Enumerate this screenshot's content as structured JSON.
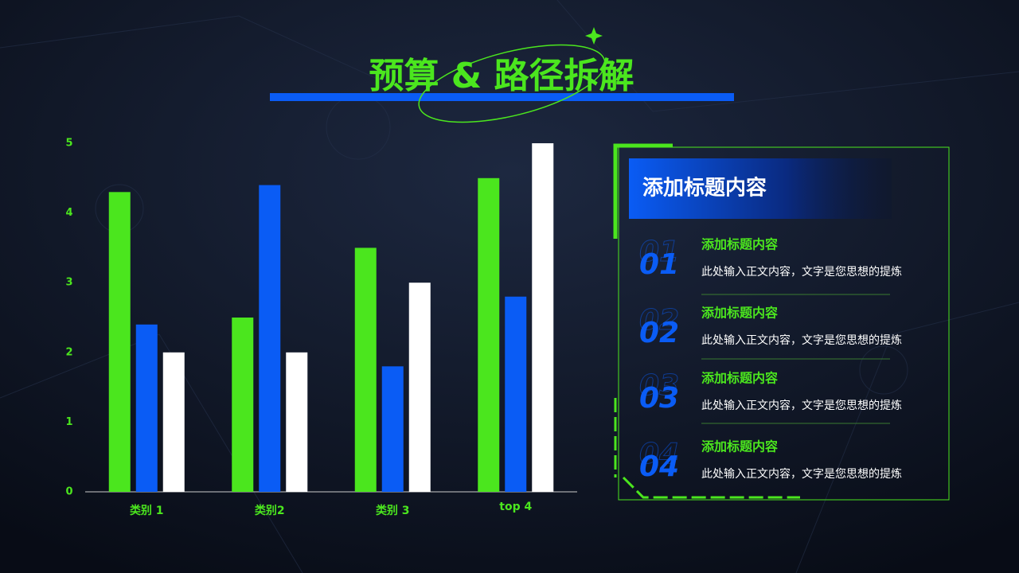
{
  "title": "预算 & 路径拆解",
  "chart_data": {
    "type": "bar",
    "categories": [
      "类别 1",
      "类别2",
      "类别 3",
      "top 4"
    ],
    "series": [
      {
        "color": "#4be61e",
        "values": [
          4.3,
          2.5,
          3.5,
          4.5
        ]
      },
      {
        "color": "#0a5cf5",
        "values": [
          2.4,
          4.4,
          1.8,
          2.8
        ]
      },
      {
        "color": "#ffffff",
        "values": [
          2,
          2,
          3,
          5
        ]
      }
    ],
    "ylim": [
      0,
      5
    ],
    "yticks": [
      0,
      1,
      2,
      3,
      4,
      5
    ],
    "grid": false
  },
  "panel": {
    "title": "添加标题内容",
    "items": [
      {
        "number": "01",
        "heading": "添加标题内容",
        "text": "此处输入正文内容，文字是您思想的提炼"
      },
      {
        "number": "02",
        "heading": "添加标题内容",
        "text": "此处输入正文内容，文字是您思想的提炼"
      },
      {
        "number": "03",
        "heading": "添加标题内容",
        "text": "此处输入正文内容，文字是您思想的提炼"
      },
      {
        "number": "04",
        "heading": "添加标题内容",
        "text": "此处输入正文内容，文字是您思想的提炼"
      }
    ]
  }
}
